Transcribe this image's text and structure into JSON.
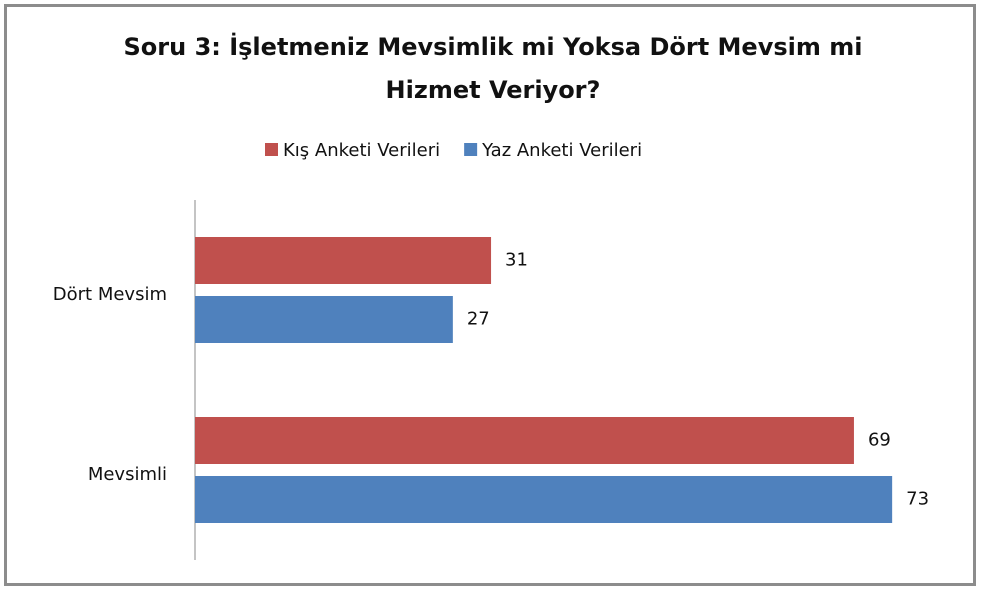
{
  "chart_data": {
    "type": "bar",
    "orientation": "horizontal",
    "title": "Soru 3: İşletmeniz Mevsimlik mi Yoksa Dört Mevsim mi Hizmet Veriyor?",
    "categories": [
      "Dört Mevsim",
      "Mevsimli"
    ],
    "series": [
      {
        "name": "Kış Anketi Verileri",
        "color": "#c0504d",
        "values": [
          31,
          69
        ]
      },
      {
        "name": "Yaz Anketi Verileri",
        "color": "#4f81bd",
        "values": [
          27,
          73
        ]
      }
    ],
    "xlim": [
      0,
      80
    ],
    "legend": "top"
  }
}
